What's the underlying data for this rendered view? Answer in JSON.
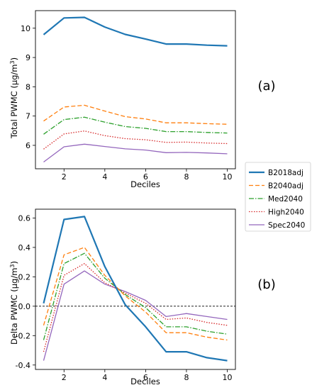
{
  "chart_data": [
    {
      "type": "line",
      "panel_label": "(a)",
      "xlabel": "Deciles",
      "ylabel": "Total PWMC (µg/m³)",
      "ylabel_main": "Total PWMC (µg/m",
      "ylabel_sup": "3",
      "ylabel_close": ")",
      "xlim": [
        0.6,
        10.4
      ],
      "ylim": [
        5.2,
        10.6
      ],
      "xticks": [
        "2",
        "4",
        "6",
        "8",
        "10"
      ],
      "yticks": [
        "6",
        "7",
        "8",
        "9",
        "10"
      ],
      "x": [
        1,
        2,
        3,
        4,
        5,
        6,
        7,
        8,
        9,
        10
      ],
      "series": [
        {
          "name": "B2018adj",
          "values": [
            9.78,
            10.35,
            10.37,
            10.04,
            9.79,
            9.63,
            9.46,
            9.46,
            9.42,
            9.4
          ]
        },
        {
          "name": "B2040adj",
          "values": [
            6.83,
            7.31,
            7.37,
            7.17,
            6.98,
            6.9,
            6.77,
            6.77,
            6.74,
            6.72
          ]
        },
        {
          "name": "Med2040",
          "values": [
            6.38,
            6.88,
            6.96,
            6.79,
            6.64,
            6.58,
            6.47,
            6.47,
            6.44,
            6.42
          ]
        },
        {
          "name": "High2040",
          "values": [
            5.87,
            6.39,
            6.49,
            6.33,
            6.23,
            6.19,
            6.1,
            6.11,
            6.08,
            6.06
          ]
        },
        {
          "name": "Spec2040",
          "values": [
            5.43,
            5.95,
            6.04,
            5.96,
            5.88,
            5.84,
            5.75,
            5.76,
            5.74,
            5.71
          ]
        }
      ]
    },
    {
      "type": "line",
      "panel_label": "(b)",
      "xlabel": "Deciles",
      "ylabel": "Delta PWMC (µg/m³)",
      "ylabel_main": "Delta PWMC (µg/m",
      "ylabel_sup": "3",
      "ylabel_close": ")",
      "xlim": [
        0.6,
        10.4
      ],
      "ylim": [
        -0.43,
        0.66
      ],
      "xticks": [
        "2",
        "4",
        "6",
        "8",
        "10"
      ],
      "yticks": [
        "-0.4",
        "-0.2",
        "0.0",
        "0.2",
        "0.4",
        "0.6"
      ],
      "reference_line": 0.0,
      "x": [
        1,
        2,
        3,
        4,
        5,
        6,
        7,
        8,
        9,
        10
      ],
      "series": [
        {
          "name": "B2018adj",
          "values": [
            0.02,
            0.59,
            0.61,
            0.27,
            0.01,
            -0.14,
            -0.31,
            -0.31,
            -0.35,
            -0.37
          ]
        },
        {
          "name": "B2040adj",
          "values": [
            -0.13,
            0.35,
            0.4,
            0.21,
            0.07,
            -0.04,
            -0.18,
            -0.18,
            -0.21,
            -0.23
          ]
        },
        {
          "name": "Med2040",
          "values": [
            -0.23,
            0.29,
            0.36,
            0.19,
            0.08,
            -0.01,
            -0.14,
            -0.14,
            -0.17,
            -0.19
          ]
        },
        {
          "name": "High2040",
          "values": [
            -0.31,
            0.21,
            0.29,
            0.16,
            0.09,
            0.02,
            -0.09,
            -0.08,
            -0.11,
            -0.13
          ]
        },
        {
          "name": "Spec2040",
          "values": [
            -0.37,
            0.15,
            0.24,
            0.15,
            0.1,
            0.04,
            -0.07,
            -0.05,
            -0.07,
            -0.09
          ]
        }
      ]
    }
  ],
  "legend": {
    "position": "right, between panels",
    "entries": [
      "B2018adj",
      "B2040adj",
      "Med2040",
      "High2040",
      "Spec2040"
    ]
  },
  "styles": {
    "B2018adj": {
      "color": "#1f77b4",
      "dash": "solid"
    },
    "B2040adj": {
      "color": "#ff7f0e",
      "dash": "dashed"
    },
    "Med2040": {
      "color": "#2ca02c",
      "dash": "dashdot"
    },
    "High2040": {
      "color": "#d62728",
      "dash": "dotted"
    },
    "Spec2040": {
      "color": "#9467bd",
      "dash": "solid"
    }
  }
}
